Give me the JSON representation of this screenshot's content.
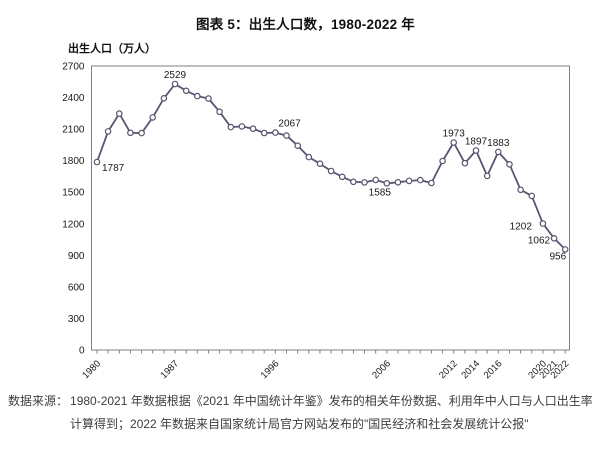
{
  "header": {
    "title": "图表 5：出生人口数，1980-2022 年"
  },
  "chart_data": {
    "type": "line",
    "title": "图表 5：出生人口数，1980-2022 年",
    "ylabel": "出生人口（万人）",
    "ylim": [
      0,
      2700
    ],
    "ytick_interval": 300,
    "grid": false,
    "legend": "none",
    "x": [
      1980,
      1981,
      1982,
      1983,
      1984,
      1985,
      1986,
      1987,
      1988,
      1989,
      1990,
      1991,
      1992,
      1993,
      1994,
      1995,
      1996,
      1997,
      1998,
      1999,
      2000,
      2001,
      2002,
      2003,
      2004,
      2005,
      2006,
      2007,
      2008,
      2009,
      2010,
      2011,
      2012,
      2013,
      2014,
      2015,
      2016,
      2017,
      2018,
      2019,
      2020,
      2021,
      2022
    ],
    "values": [
      1787,
      2078,
      2247,
      2065,
      2062,
      2211,
      2393,
      2529,
      2464,
      2414,
      2391,
      2265,
      2119,
      2126,
      2104,
      2063,
      2067,
      2038,
      1942,
      1834,
      1771,
      1702,
      1647,
      1599,
      1593,
      1617,
      1585,
      1594,
      1608,
      1615,
      1588,
      1797,
      1973,
      1776,
      1897,
      1655,
      1883,
      1765,
      1523,
      1465,
      1202,
      1062,
      956
    ],
    "xtick_labeled_years": [
      1980,
      1987,
      1996,
      2006,
      2012,
      2014,
      2016,
      2020,
      2021,
      2022
    ],
    "labeled_points": [
      {
        "year": 1980,
        "label": "1787",
        "pos": "below-right"
      },
      {
        "year": 1987,
        "label": "2529",
        "pos": "above"
      },
      {
        "year": 1996,
        "label": "2067",
        "pos": "above-right"
      },
      {
        "year": 2006,
        "label": "1585",
        "pos": "below"
      },
      {
        "year": 2012,
        "label": "1973",
        "pos": "above"
      },
      {
        "year": 2014,
        "label": "1897",
        "pos": "above"
      },
      {
        "year": 2016,
        "label": "1883",
        "pos": "above"
      },
      {
        "year": 2020,
        "label": "1202",
        "pos": "left-far"
      },
      {
        "year": 2021,
        "label": "1062",
        "pos": "left"
      },
      {
        "year": 2022,
        "label": "956",
        "pos": "below-left"
      }
    ],
    "line_color": "#565670",
    "marker_fill": "#ffffff",
    "frame_color": "#7f7f7f",
    "text_color": "#1a1a1a"
  },
  "source": {
    "label": "数据来源：",
    "lines": [
      "1980-2021 年数据根据《2021 年中国统计年鉴》发布的相关年份数据、利用年中人口与人口出生率",
      "计算得到；2022 年数据来自国家统计局官方网站发布的\"国民经济和社会发展统计公报\""
    ]
  }
}
